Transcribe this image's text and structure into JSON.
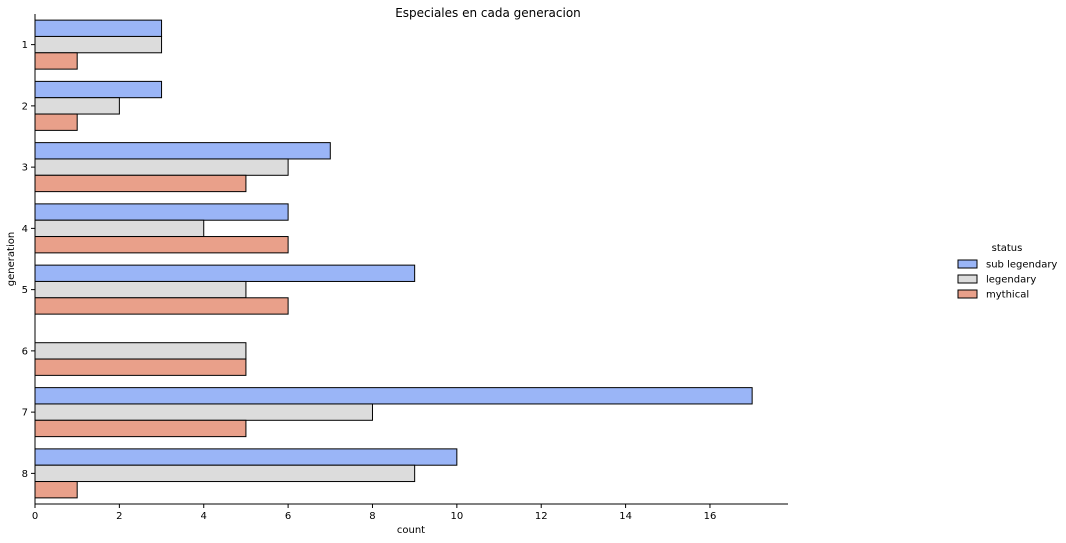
{
  "chart_data": {
    "type": "bar",
    "orientation": "horizontal",
    "title": "Especiales en cada generacion",
    "xlabel": "count",
    "ylabel": "generation",
    "categories": [
      "1",
      "2",
      "3",
      "4",
      "5",
      "6",
      "7",
      "8"
    ],
    "series": [
      {
        "name": "sub legendary",
        "color": "#9ab5f7",
        "values": [
          3,
          3,
          7,
          6,
          9,
          0,
          17,
          10
        ]
      },
      {
        "name": "legendary",
        "color": "#dcdcdc",
        "values": [
          3,
          2,
          6,
          4,
          5,
          5,
          8,
          9
        ]
      },
      {
        "name": "mythical",
        "color": "#e9a08a",
        "values": [
          1,
          1,
          5,
          6,
          6,
          5,
          5,
          1
        ]
      }
    ],
    "xlim": [
      0,
      17.85
    ],
    "xticks": [
      0,
      2,
      4,
      6,
      8,
      10,
      12,
      14,
      16
    ],
    "grid": false,
    "legend": {
      "title": "status",
      "placement": "right"
    }
  }
}
